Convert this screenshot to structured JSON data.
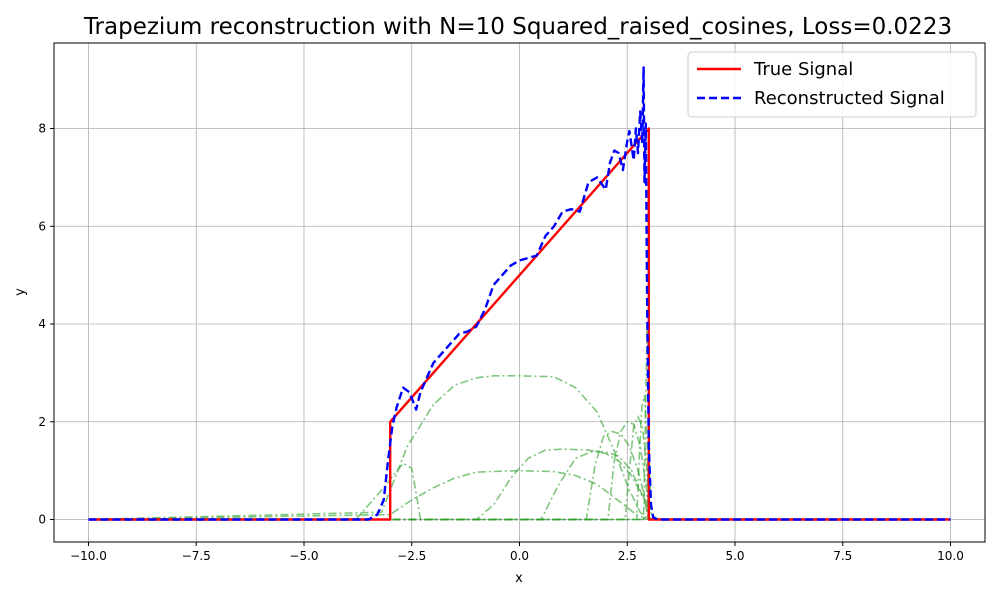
{
  "chart_data": {
    "type": "line",
    "title": "Trapezium reconstruction with N=10 Squared_raised_cosines, Loss=0.0223",
    "xlabel": "x",
    "ylabel": "y",
    "xlim": [
      -10.8,
      10.8
    ],
    "ylim": [
      -0.46,
      9.75
    ],
    "xticks": [
      -10.0,
      -7.5,
      -5.0,
      -2.5,
      0.0,
      2.5,
      5.0,
      7.5,
      10.0
    ],
    "xtick_labels": [
      "−10.0",
      "−7.5",
      "−5.0",
      "−2.5",
      "0.0",
      "2.5",
      "5.0",
      "7.5",
      "10.0"
    ],
    "yticks": [
      0,
      2,
      4,
      6,
      8
    ],
    "ytick_labels": [
      "0",
      "2",
      "4",
      "6",
      "8"
    ],
    "grid": true,
    "legend_position": "top-right",
    "series": [
      {
        "name": "True Signal",
        "color": "#ff0000",
        "style": "solid",
        "x": [
          -10,
          -3.0,
          -3.0,
          3.0,
          3.0,
          10
        ],
        "y": [
          0,
          0,
          2.0,
          8.0,
          0,
          0
        ]
      },
      {
        "name": "Reconstructed Signal",
        "color": "#0000ff",
        "style": "dashed",
        "x": [
          -10,
          -3.5,
          -3.3,
          -3.15,
          -3.05,
          -2.95,
          -2.85,
          -2.7,
          -2.55,
          -2.4,
          -2.3,
          -2.15,
          -2.0,
          -1.8,
          -1.6,
          -1.4,
          -1.2,
          -1.0,
          -0.8,
          -0.6,
          -0.4,
          -0.2,
          0.0,
          0.2,
          0.4,
          0.6,
          0.8,
          1.0,
          1.2,
          1.4,
          1.6,
          1.8,
          2.0,
          2.1,
          2.2,
          2.3,
          2.4,
          2.5,
          2.55,
          2.65,
          2.7,
          2.75,
          2.8,
          2.85,
          2.88,
          2.9,
          2.93,
          2.96,
          3.0,
          3.05,
          3.1,
          3.2,
          10
        ],
        "y": [
          0,
          0,
          0.1,
          0.4,
          1.2,
          1.9,
          2.3,
          2.7,
          2.6,
          2.25,
          2.6,
          2.9,
          3.2,
          3.4,
          3.6,
          3.8,
          3.85,
          3.95,
          4.3,
          4.8,
          5.0,
          5.2,
          5.3,
          5.35,
          5.4,
          5.8,
          6.0,
          6.3,
          6.35,
          6.3,
          6.9,
          7.0,
          6.75,
          7.3,
          7.55,
          7.5,
          7.15,
          7.75,
          7.95,
          7.35,
          8.0,
          7.5,
          8.35,
          7.7,
          9.25,
          6.9,
          8.1,
          4.5,
          1.5,
          0.3,
          0.05,
          0,
          0
        ]
      }
    ],
    "component_color": "#2ca02c",
    "component_style": "dashdot",
    "components": [
      {
        "x": [
          -3.8,
          -3.2,
          -2.7,
          -2.5,
          -2.35,
          -2.3,
          10
        ],
        "y": [
          0,
          0.6,
          1.15,
          1.05,
          0.3,
          0,
          0
        ]
      },
      {
        "x": [
          -10,
          -3.2,
          -2.6,
          -2.0,
          -1.5,
          -1.0,
          -0.6,
          0.0,
          0.8,
          1.3,
          1.8,
          2.2,
          2.55,
          2.8,
          3.0,
          10
        ],
        "y": [
          0,
          0.15,
          1.5,
          2.35,
          2.75,
          2.9,
          2.94,
          2.94,
          2.92,
          2.7,
          2.2,
          1.4,
          0.6,
          0.15,
          0,
          0
        ]
      },
      {
        "x": [
          -10,
          -3.0,
          -2.5,
          -2.0,
          -1.5,
          -1.0,
          0.0,
          0.8,
          1.3,
          1.8,
          2.2,
          2.5,
          2.7,
          3.0,
          10
        ],
        "y": [
          0,
          0.1,
          0.4,
          0.65,
          0.85,
          0.97,
          1.0,
          0.98,
          0.9,
          0.72,
          0.45,
          0.25,
          0.1,
          0,
          0
        ]
      },
      {
        "x": [
          -10,
          -1.0,
          -0.6,
          -0.2,
          0.2,
          0.6,
          1.0,
          1.6,
          2.0,
          2.3,
          2.6,
          2.9,
          3.0,
          10
        ],
        "y": [
          0,
          0,
          0.3,
          0.85,
          1.25,
          1.42,
          1.44,
          1.42,
          1.35,
          1.2,
          0.9,
          0.4,
          0,
          0
        ]
      },
      {
        "x": [
          -10,
          0.5,
          0.9,
          1.3,
          1.7,
          2.0,
          2.3,
          2.6,
          2.9,
          3.0,
          10
        ],
        "y": [
          0,
          0,
          0.7,
          1.25,
          1.4,
          1.38,
          1.3,
          1.0,
          0.4,
          0,
          0
        ]
      },
      {
        "x": [
          -10,
          1.55,
          1.75,
          1.95,
          2.15,
          2.35,
          2.55,
          2.75,
          2.95,
          3.0,
          10
        ],
        "y": [
          0,
          0,
          1.1,
          1.7,
          1.8,
          1.75,
          1.5,
          1.0,
          0.3,
          0,
          0
        ]
      },
      {
        "x": [
          -10,
          2.05,
          2.2,
          2.35,
          2.5,
          2.65,
          2.8,
          2.95,
          3.0,
          10
        ],
        "y": [
          0,
          0,
          1.2,
          1.8,
          2.0,
          1.95,
          1.5,
          0.6,
          0,
          0
        ]
      },
      {
        "x": [
          -10,
          2.45,
          2.55,
          2.65,
          2.75,
          2.85,
          2.95,
          3.0,
          10
        ],
        "y": [
          0,
          0,
          1.0,
          1.9,
          2.1,
          1.9,
          1.1,
          0,
          0
        ]
      },
      {
        "x": [
          -10,
          2.72,
          2.78,
          2.84,
          2.9,
          2.96,
          3.0,
          10
        ],
        "y": [
          0,
          0,
          1.3,
          2.3,
          2.55,
          1.6,
          0,
          0
        ]
      },
      {
        "x": [
          -10,
          2.88,
          2.92,
          2.96,
          2.99,
          3.02,
          3.05,
          10
        ],
        "y": [
          0,
          0,
          2.0,
          4.0,
          3.4,
          1.0,
          0,
          0
        ]
      }
    ]
  }
}
